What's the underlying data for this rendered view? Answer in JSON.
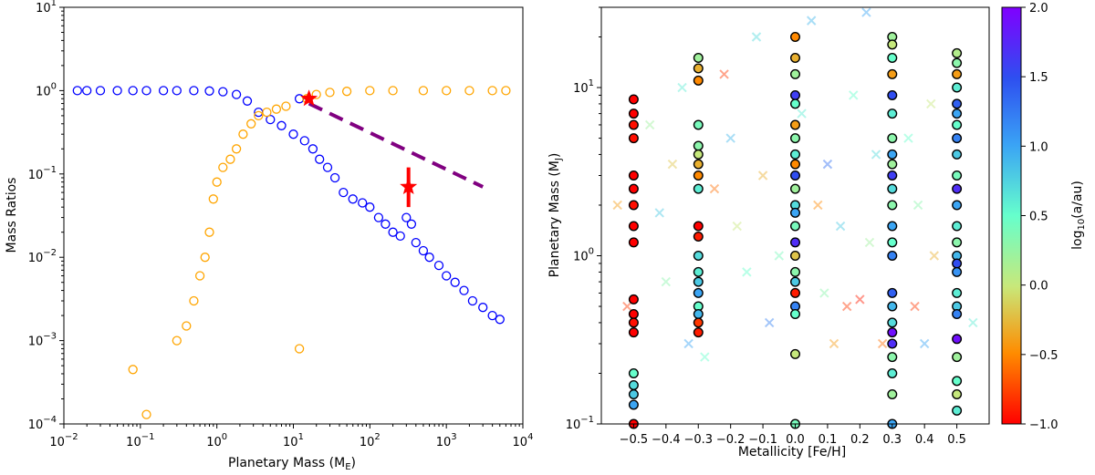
{
  "chart_data": [
    {
      "type": "scatter",
      "xscale": "log",
      "yscale": "log",
      "xlabel": "Planetary Mass (M",
      "xlabel_sub": "E",
      "xlabel_end": ")",
      "ylabel": "Mass Ratios",
      "xlim": [
        0.01,
        10000
      ],
      "ylim": [
        0.0001,
        10
      ],
      "x_ticks": [
        {
          "v": 0.01,
          "base": "10",
          "exp": "−2"
        },
        {
          "v": 0.1,
          "base": "10",
          "exp": "−1"
        },
        {
          "v": 1,
          "base": "10",
          "exp": "0"
        },
        {
          "v": 10,
          "base": "10",
          "exp": "1"
        },
        {
          "v": 100,
          "base": "10",
          "exp": "2"
        },
        {
          "v": 1000,
          "base": "10",
          "exp": "3"
        },
        {
          "v": 10000,
          "base": "10",
          "exp": "4"
        }
      ],
      "y_ticks": [
        {
          "v": 0.0001,
          "base": "10",
          "exp": "−4"
        },
        {
          "v": 0.001,
          "base": "10",
          "exp": "−3"
        },
        {
          "v": 0.01,
          "base": "10",
          "exp": "−2"
        },
        {
          "v": 0.1,
          "base": "10",
          "exp": "−1"
        },
        {
          "v": 1,
          "base": "10",
          "exp": "0"
        },
        {
          "v": 10,
          "base": "10",
          "exp": "1"
        }
      ],
      "series": [
        {
          "name": "blue open circles",
          "color": "#0000ff",
          "marker": "circle-open",
          "points": [
            [
              0.015,
              1.0
            ],
            [
              0.02,
              1.0
            ],
            [
              0.03,
              1.0
            ],
            [
              0.05,
              1.0
            ],
            [
              0.08,
              1.0
            ],
            [
              0.12,
              1.0
            ],
            [
              0.2,
              1.0
            ],
            [
              0.3,
              1.0
            ],
            [
              0.5,
              1.0
            ],
            [
              0.8,
              0.99
            ],
            [
              1.2,
              0.97
            ],
            [
              1.8,
              0.9
            ],
            [
              2.5,
              0.75
            ],
            [
              3.5,
              0.55
            ],
            [
              5,
              0.45
            ],
            [
              7,
              0.38
            ],
            [
              10,
              0.3
            ],
            [
              12,
              0.8
            ],
            [
              14,
              0.25
            ],
            [
              18,
              0.2
            ],
            [
              22,
              0.15
            ],
            [
              28,
              0.12
            ],
            [
              35,
              0.09
            ],
            [
              45,
              0.06
            ],
            [
              60,
              0.05
            ],
            [
              80,
              0.045
            ],
            [
              100,
              0.04
            ],
            [
              130,
              0.03
            ],
            [
              160,
              0.025
            ],
            [
              200,
              0.02
            ],
            [
              250,
              0.018
            ],
            [
              300,
              0.03
            ],
            [
              350,
              0.025
            ],
            [
              400,
              0.015
            ],
            [
              500,
              0.012
            ],
            [
              600,
              0.01
            ],
            [
              800,
              0.008
            ],
            [
              1000,
              0.006
            ],
            [
              1300,
              0.005
            ],
            [
              1700,
              0.004
            ],
            [
              2200,
              0.003
            ],
            [
              3000,
              0.0025
            ],
            [
              4000,
              0.002
            ],
            [
              5000,
              0.0018
            ]
          ]
        },
        {
          "name": "orange open circles",
          "color": "#ffa500",
          "marker": "circle-open",
          "points": [
            [
              0.08,
              0.00045
            ],
            [
              0.12,
              0.00013
            ],
            [
              0.3,
              0.001
            ],
            [
              0.4,
              0.0015
            ],
            [
              0.5,
              0.003
            ],
            [
              0.6,
              0.006
            ],
            [
              0.7,
              0.01
            ],
            [
              0.8,
              0.02
            ],
            [
              0.9,
              0.05
            ],
            [
              1.0,
              0.08
            ],
            [
              1.2,
              0.12
            ],
            [
              1.5,
              0.15
            ],
            [
              1.8,
              0.2
            ],
            [
              2.2,
              0.3
            ],
            [
              2.8,
              0.4
            ],
            [
              3.5,
              0.5
            ],
            [
              4.5,
              0.55
            ],
            [
              6,
              0.6
            ],
            [
              8,
              0.65
            ],
            [
              12,
              0.0008
            ],
            [
              15,
              0.8
            ],
            [
              20,
              0.9
            ],
            [
              30,
              0.95
            ],
            [
              50,
              0.98
            ],
            [
              100,
              1.0
            ],
            [
              200,
              1.0
            ],
            [
              500,
              1.0
            ],
            [
              1000,
              1.0
            ],
            [
              2000,
              1.0
            ],
            [
              4000,
              1.0
            ],
            [
              6000,
              1.0
            ]
          ]
        }
      ],
      "highlight_stars": [
        {
          "x": 16,
          "y": 0.8,
          "color": "#ff0000"
        },
        {
          "x": 320,
          "y": 0.07,
          "color": "#ff0000",
          "error_low": 0.04,
          "error_high": 0.12
        }
      ],
      "dashed_line": {
        "color": "#800080",
        "from": [
          16,
          0.7
        ],
        "to": [
          3000,
          0.07
        ]
      }
    },
    {
      "type": "scatter",
      "xscale": "linear",
      "yscale": "log",
      "xlabel": "Metallicity [Fe/H]",
      "ylabel": "Planetary Mass (M",
      "ylabel_sub": "J",
      "ylabel_end": ")",
      "xlim": [
        -0.6,
        0.6
      ],
      "ylim": [
        0.1,
        30
      ],
      "x_ticks": [
        {
          "v": -0.5,
          "label": "−0.5"
        },
        {
          "v": -0.4,
          "label": "−0.4"
        },
        {
          "v": -0.3,
          "label": "−0.3"
        },
        {
          "v": -0.2,
          "label": "−0.2"
        },
        {
          "v": -0.1,
          "label": "−0.1"
        },
        {
          "v": 0.0,
          "label": "0.0"
        },
        {
          "v": 0.1,
          "label": "0.1"
        },
        {
          "v": 0.2,
          "label": "0.2"
        },
        {
          "v": 0.3,
          "label": "0.3"
        },
        {
          "v": 0.4,
          "label": "0.4"
        },
        {
          "v": 0.5,
          "label": "0.5"
        }
      ],
      "y_ticks": [
        {
          "v": 0.1,
          "base": "10",
          "exp": "−1"
        },
        {
          "v": 1,
          "base": "10",
          "exp": "0"
        },
        {
          "v": 10,
          "base": "10",
          "exp": "1"
        }
      ],
      "colorbar": {
        "label": "log",
        "label_sub": "10",
        "label_end": "(a/au)",
        "cmap": "rainbow_r",
        "vmin": -1.0,
        "vmax": 2.0,
        "ticks": [
          {
            "v": 2.0,
            "label": "2.0"
          },
          {
            "v": 1.5,
            "label": "1.5"
          },
          {
            "v": 1.0,
            "label": "1.0"
          },
          {
            "v": 0.5,
            "label": "0.5"
          },
          {
            "v": 0.0,
            "label": "0.0"
          },
          {
            "v": -0.5,
            "label": "−0.5"
          },
          {
            "v": -1.0,
            "label": "−1.0"
          }
        ]
      },
      "filled_circles": [
        {
          "metallicity": -0.5,
          "masses": [
            8.5,
            7.0,
            6.0,
            5.0,
            3.0,
            2.5,
            2.0,
            1.5,
            1.2,
            0.55,
            0.45,
            0.4,
            0.35,
            0.2,
            0.17,
            0.15,
            0.13,
            0.1
          ],
          "loga": [
            -1.0,
            -1.0,
            -0.95,
            -0.95,
            -1.0,
            -1.0,
            -0.95,
            -1.0,
            -1.0,
            -1.0,
            -1.0,
            -0.95,
            -1.0,
            0.5,
            0.7,
            0.8,
            1.0,
            -1.0
          ]
        },
        {
          "metallicity": -0.3,
          "masses": [
            15,
            13,
            11,
            6.0,
            4.5,
            4.0,
            3.5,
            3.0,
            2.5,
            1.5,
            1.3,
            1.0,
            0.8,
            0.7,
            0.6,
            0.5,
            0.45,
            0.4,
            0.35
          ],
          "loga": [
            0.2,
            -0.3,
            -0.5,
            0.4,
            0.3,
            0.0,
            -0.3,
            -0.5,
            0.6,
            -1.0,
            -0.9,
            0.7,
            0.6,
            0.8,
            1.0,
            0.5,
            0.9,
            -0.8,
            -0.9
          ]
        },
        {
          "metallicity": 0.0,
          "masses": [
            20,
            15,
            12,
            9.0,
            8.0,
            6.0,
            5.0,
            4.0,
            3.5,
            3.0,
            2.5,
            2.0,
            1.8,
            1.5,
            1.2,
            1.0,
            0.8,
            0.7,
            0.6,
            0.5,
            0.45,
            0.26,
            0.1
          ],
          "loga": [
            -0.5,
            -0.3,
            0.2,
            1.6,
            0.5,
            -0.4,
            0.3,
            0.6,
            -0.5,
            1.5,
            0.2,
            0.7,
            1.0,
            0.4,
            1.7,
            -0.2,
            0.3,
            0.8,
            -0.9,
            1.2,
            0.5,
            0.0,
            0.4
          ]
        },
        {
          "metallicity": 0.3,
          "masses": [
            20,
            18,
            15,
            12,
            9.0,
            7.0,
            5.0,
            4.0,
            3.5,
            3.0,
            2.5,
            2.0,
            1.5,
            1.2,
            1.0,
            0.6,
            0.5,
            0.4,
            0.35,
            0.3,
            0.25,
            0.2,
            0.15,
            0.1
          ],
          "loga": [
            0.2,
            0.0,
            0.5,
            -0.4,
            1.5,
            0.6,
            0.3,
            1.0,
            0.2,
            1.6,
            0.7,
            0.3,
            1.0,
            0.5,
            1.2,
            1.4,
            0.9,
            0.7,
            1.9,
            1.7,
            0.3,
            0.6,
            0.2,
            1.0
          ]
        },
        {
          "metallicity": 0.5,
          "masses": [
            16,
            14,
            12,
            10,
            8.0,
            7.0,
            6.0,
            5.0,
            4.0,
            3.0,
            2.5,
            2.0,
            1.5,
            1.2,
            1.0,
            0.9,
            0.8,
            0.6,
            0.5,
            0.45,
            0.32,
            0.25,
            0.18,
            0.15,
            0.12
          ],
          "loga": [
            0.1,
            0.3,
            -0.4,
            0.6,
            1.4,
            1.0,
            0.5,
            1.2,
            0.8,
            0.4,
            1.7,
            1.0,
            0.6,
            0.3,
            0.9,
            1.5,
            1.1,
            0.6,
            0.8,
            1.2,
            1.9,
            0.2,
            0.5,
            0.0,
            0.6
          ]
        }
      ],
      "crosses": [
        [
          -0.55,
          2.0,
          -0.4
        ],
        [
          -0.52,
          0.5,
          -0.8
        ],
        [
          -0.45,
          6.0,
          0.2
        ],
        [
          -0.42,
          1.8,
          0.8
        ],
        [
          -0.4,
          0.7,
          0.3
        ],
        [
          -0.38,
          3.5,
          -0.2
        ],
        [
          -0.35,
          10,
          0.6
        ],
        [
          -0.33,
          0.3,
          1.0
        ],
        [
          -0.28,
          0.25,
          0.5
        ],
        [
          -0.25,
          2.5,
          -0.6
        ],
        [
          -0.22,
          12,
          -0.8
        ],
        [
          -0.2,
          5.0,
          0.9
        ],
        [
          -0.18,
          1.5,
          0.0
        ],
        [
          -0.15,
          0.8,
          0.5
        ],
        [
          -0.12,
          20,
          0.7
        ],
        [
          -0.1,
          3.0,
          -0.3
        ],
        [
          -0.08,
          0.4,
          1.2
        ],
        [
          -0.05,
          1.0,
          0.4
        ],
        [
          0.02,
          7.0,
          0.6
        ],
        [
          0.05,
          25,
          0.9
        ],
        [
          0.07,
          2.0,
          -0.5
        ],
        [
          0.09,
          0.6,
          0.3
        ],
        [
          0.1,
          3.5,
          1.3
        ],
        [
          0.12,
          0.3,
          -0.4
        ],
        [
          0.14,
          1.5,
          0.8
        ],
        [
          0.16,
          0.5,
          -0.8
        ],
        [
          0.18,
          9.0,
          0.5
        ],
        [
          0.2,
          0.55,
          -0.9
        ],
        [
          0.22,
          28,
          1.0
        ],
        [
          0.23,
          1.2,
          0.2
        ],
        [
          0.25,
          4.0,
          0.7
        ],
        [
          0.27,
          0.3,
          -0.6
        ],
        [
          0.35,
          5.0,
          0.5
        ],
        [
          0.37,
          0.5,
          -0.8
        ],
        [
          0.38,
          2.0,
          0.3
        ],
        [
          0.4,
          0.3,
          1.0
        ],
        [
          0.42,
          8.0,
          0.0
        ],
        [
          0.43,
          1.0,
          -0.3
        ],
        [
          0.55,
          0.4,
          0.6
        ]
      ]
    }
  ]
}
